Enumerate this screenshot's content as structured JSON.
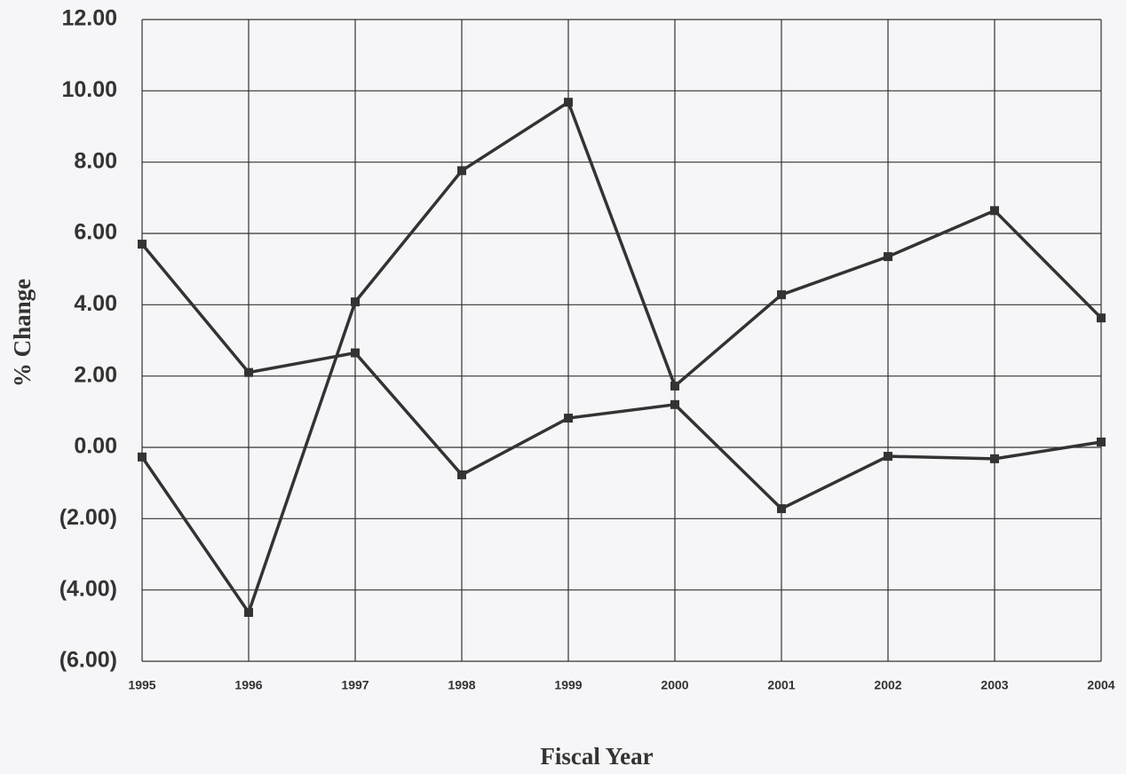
{
  "chart_data": {
    "type": "line",
    "x_label": "Fiscal Year",
    "y_label": "% Change",
    "categories": [
      "1995",
      "1996",
      "1997",
      "1998",
      "1999",
      "2000",
      "2001",
      "2002",
      "2003",
      "2004"
    ],
    "series": [
      {
        "color": "#333333",
        "values": [
          5.7,
          2.1,
          2.65,
          -0.77,
          0.82,
          1.2,
          -1.72,
          -0.25,
          -0.32,
          0.15
        ]
      },
      {
        "color": "#333333",
        "values": [
          -0.27,
          -4.63,
          4.08,
          7.76,
          9.68,
          1.72,
          4.28,
          5.35,
          6.64,
          3.63
        ]
      }
    ],
    "ylim": [
      -6,
      12
    ],
    "yticks": [
      {
        "value": -6,
        "label": "(6.00)"
      },
      {
        "value": -4,
        "label": "(4.00)"
      },
      {
        "value": -2,
        "label": "(2.00)"
      },
      {
        "value": 0,
        "label": "0.00"
      },
      {
        "value": 2,
        "label": "2.00"
      },
      {
        "value": 4,
        "label": "4.00"
      },
      {
        "value": 6,
        "label": "6.00"
      },
      {
        "value": 8,
        "label": "8.00"
      },
      {
        "value": 10,
        "label": "10.00"
      },
      {
        "value": 12,
        "label": "12.00"
      }
    ],
    "grid": true
  }
}
